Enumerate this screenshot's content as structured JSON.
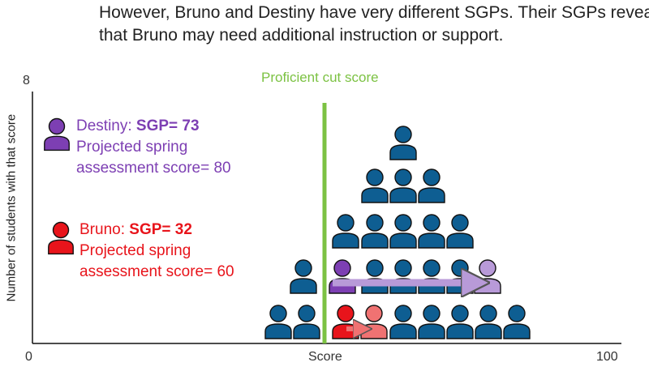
{
  "intro": {
    "line1": "However, Bruno and Destiny have very different SGPs. Their SGPs reveal",
    "line2": "that Bruno may need additional instruction or support."
  },
  "chart": {
    "cut_label": "Proficient cut score",
    "ylabel": "Number of students with that score",
    "xlabel": "Score",
    "y_max_label": "8",
    "x_min_label": "0",
    "x_max_label": "100"
  },
  "legend": {
    "destiny": {
      "name": "Destiny: ",
      "sgp": "SGP= 73",
      "line2": "Projected spring",
      "line3": "assessment score= 80"
    },
    "bruno": {
      "name": "Bruno: ",
      "sgp": "SGP= 32",
      "line2": "Projected spring",
      "line3": "assessment score= 60"
    }
  },
  "colors": {
    "student": "#0e5e92",
    "destiny": "#7d3fb3",
    "destiny_projected": "#b89ad8",
    "bruno": "#e8141b",
    "bruno_projected": "#f07272",
    "cut_line": "#7cc243",
    "axis": "#111111"
  }
}
